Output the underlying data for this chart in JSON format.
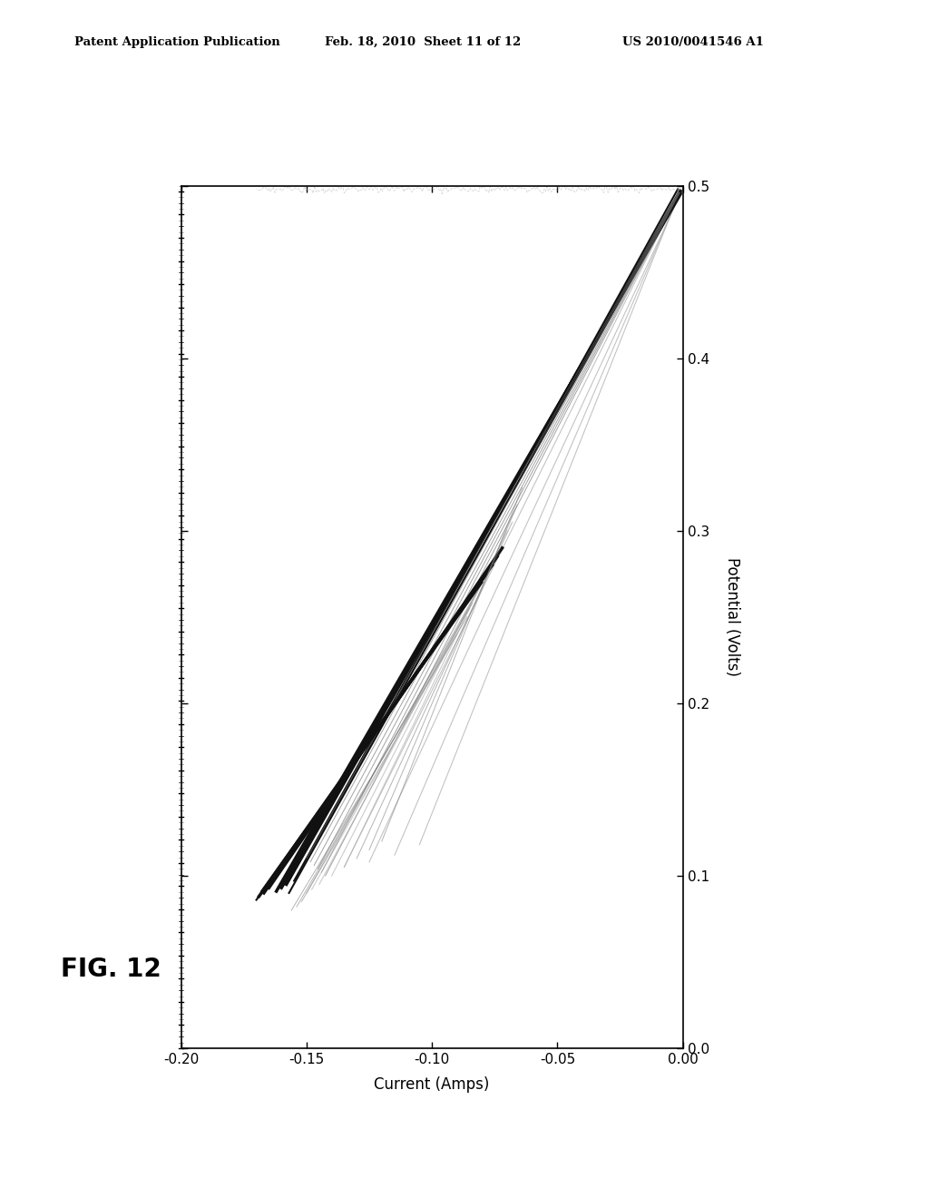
{
  "header_left": "Patent Application Publication",
  "header_center": "Feb. 18, 2010  Sheet 11 of 12",
  "header_right": "US 2010/0041546 A1",
  "fig_label": "FIG. 12",
  "xlabel": "Current (Amps)",
  "ylabel": "Potential (Volts)",
  "x_ticks": [
    0.0,
    -0.05,
    -0.1,
    -0.15,
    -0.2
  ],
  "x_tick_labels": [
    "0.00",
    "-0.05",
    "-0.10",
    "-0.15",
    "-0.20"
  ],
  "y_ticks": [
    0.0,
    0.1,
    0.2,
    0.3,
    0.4,
    0.5
  ],
  "y_tick_labels": [
    "0.0",
    "0.1",
    "0.2",
    "0.3",
    "0.4",
    "0.5"
  ],
  "x_min": -0.2,
  "x_max": 0.0,
  "y_min": 0.0,
  "y_max": 0.5,
  "background_color": "#ffffff",
  "header_fontsize": 9.5,
  "tick_fontsize": 11,
  "label_fontsize": 12,
  "fig_label_fontsize": 20
}
